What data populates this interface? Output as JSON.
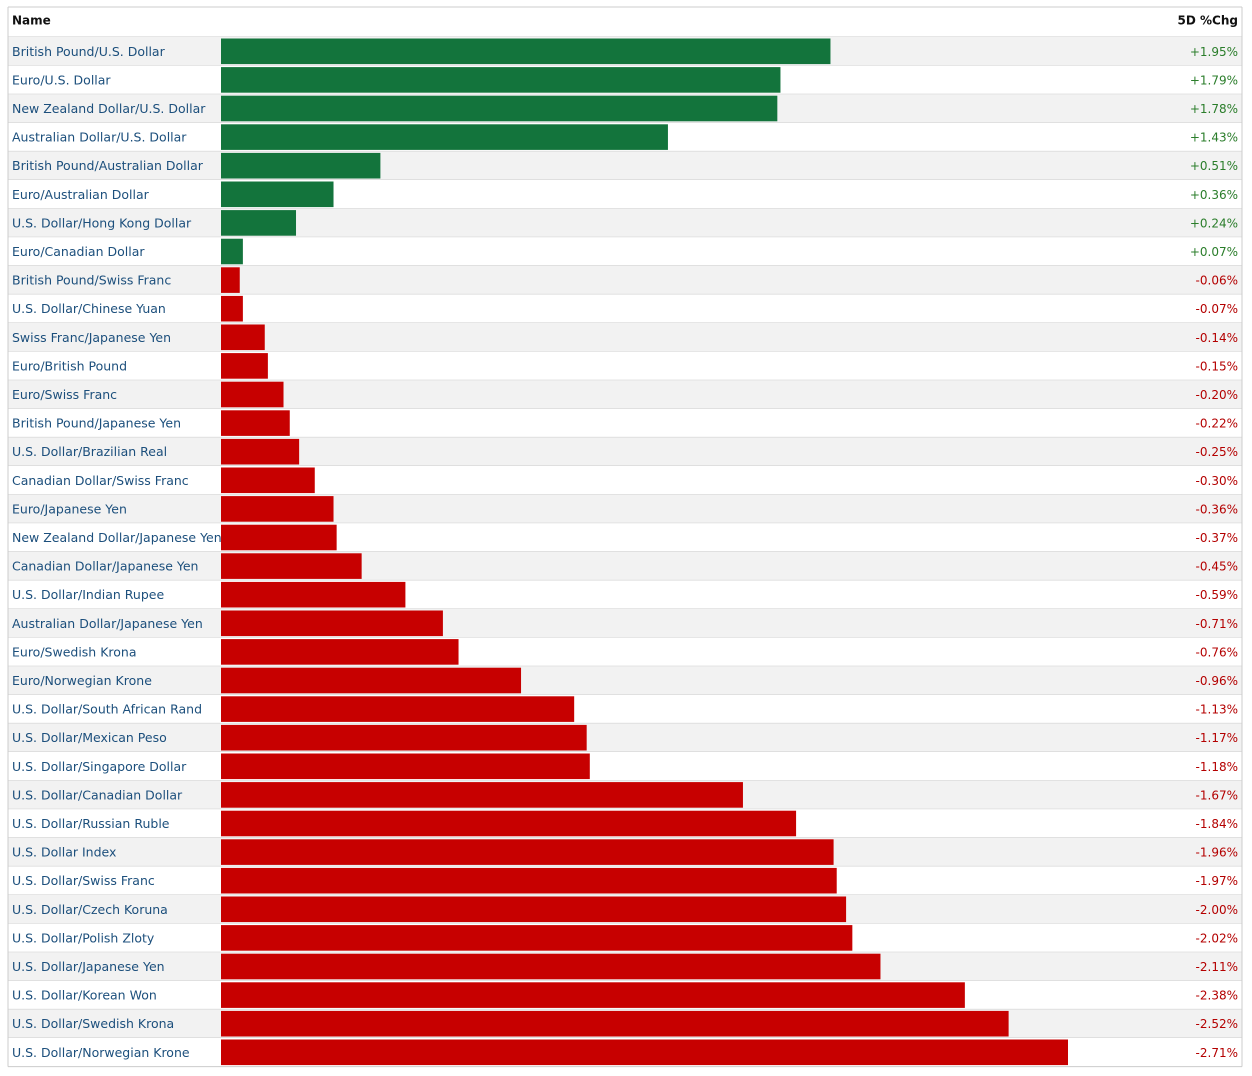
{
  "chart_data": {
    "type": "bar",
    "columns": [
      "Name",
      "5D %Chg"
    ],
    "categories": [
      "British Pound/U.S. Dollar",
      "Euro/U.S. Dollar",
      "New Zealand Dollar/U.S. Dollar",
      "Australian Dollar/U.S. Dollar",
      "British Pound/Australian Dollar",
      "Euro/Australian Dollar",
      "U.S. Dollar/Hong Kong Dollar",
      "Euro/Canadian Dollar",
      "British Pound/Swiss Franc",
      "U.S. Dollar/Chinese Yuan",
      "Swiss Franc/Japanese Yen",
      "Euro/British Pound",
      "Euro/Swiss Franc",
      "British Pound/Japanese Yen",
      "U.S. Dollar/Brazilian Real",
      "Canadian Dollar/Swiss Franc",
      "Euro/Japanese Yen",
      "New Zealand Dollar/Japanese Yen",
      "Canadian Dollar/Japanese Yen",
      "U.S. Dollar/Indian Rupee",
      "Australian Dollar/Japanese Yen",
      "Euro/Swedish Krona",
      "Euro/Norwegian Krone",
      "U.S. Dollar/South African Rand",
      "U.S. Dollar/Mexican Peso",
      "U.S. Dollar/Singapore Dollar",
      "U.S. Dollar/Canadian Dollar",
      "U.S. Dollar/Russian Ruble",
      "U.S. Dollar Index",
      "U.S. Dollar/Swiss Franc",
      "U.S. Dollar/Czech Koruna",
      "U.S. Dollar/Polish Zloty",
      "U.S. Dollar/Japanese Yen",
      "U.S. Dollar/Korean Won",
      "U.S. Dollar/Swedish Krona",
      "U.S. Dollar/Norwegian Krone"
    ],
    "values": [
      1.95,
      1.79,
      1.78,
      1.43,
      0.51,
      0.36,
      0.24,
      0.07,
      -0.06,
      -0.07,
      -0.14,
      -0.15,
      -0.2,
      -0.22,
      -0.25,
      -0.3,
      -0.36,
      -0.37,
      -0.45,
      -0.59,
      -0.71,
      -0.76,
      -0.96,
      -1.13,
      -1.17,
      -1.18,
      -1.67,
      -1.84,
      -1.96,
      -1.97,
      -2.0,
      -2.02,
      -2.11,
      -2.38,
      -2.52,
      -2.71
    ],
    "value_labels": [
      "+1.95%",
      "+1.79%",
      "+1.78%",
      "+1.43%",
      "+0.51%",
      "+0.36%",
      "+0.24%",
      "+0.07%",
      "-0.06%",
      "-0.07%",
      "-0.14%",
      "-0.15%",
      "-0.20%",
      "-0.22%",
      "-0.25%",
      "-0.30%",
      "-0.36%",
      "-0.37%",
      "-0.45%",
      "-0.59%",
      "-0.71%",
      "-0.76%",
      "-0.96%",
      "-1.13%",
      "-1.17%",
      "-1.18%",
      "-1.67%",
      "-1.84%",
      "-1.96%",
      "-1.97%",
      "-2.00%",
      "-2.02%",
      "-2.11%",
      "-2.38%",
      "-2.52%",
      "-2.71%"
    ],
    "colors": {
      "positive": "#13743c",
      "negative": "#c70000"
    }
  }
}
